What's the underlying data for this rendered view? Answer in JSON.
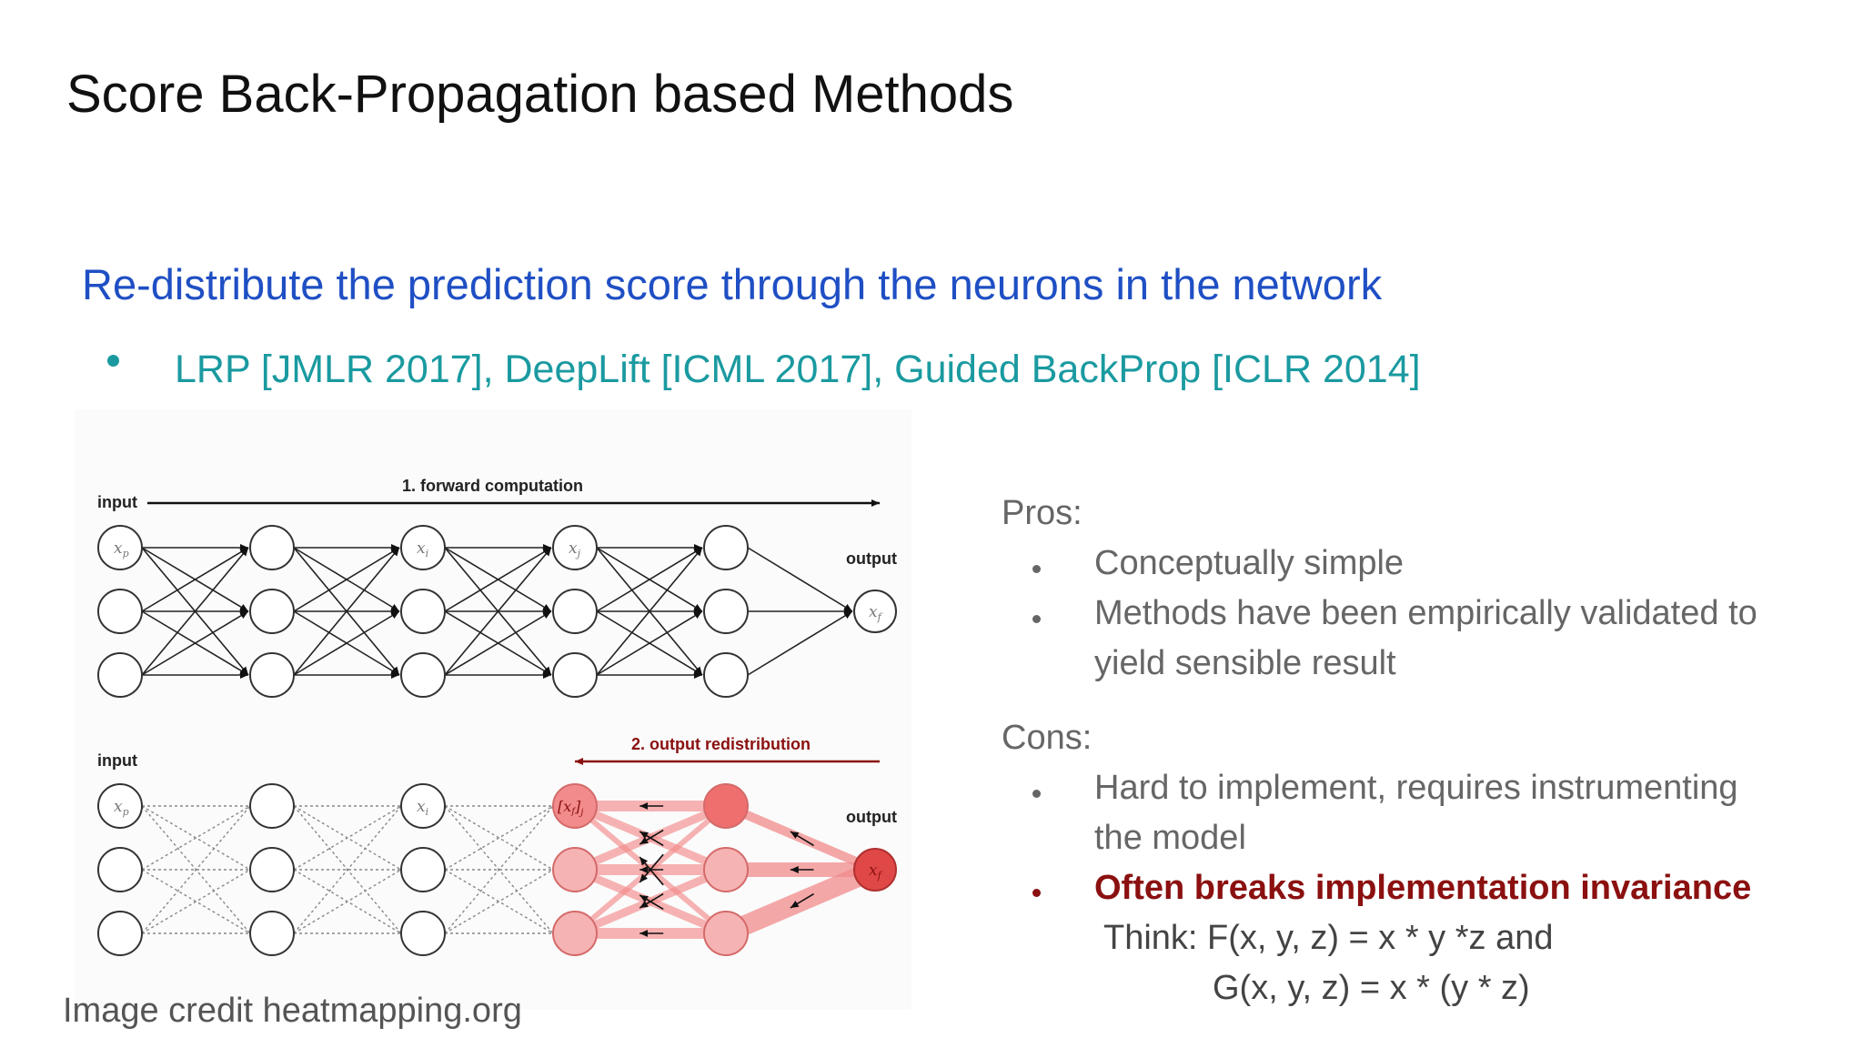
{
  "slide": {
    "title": "Score Back-Propagation based Methods",
    "subtitle": "Re-distribute the prediction score through the neurons in the network",
    "bullet": "LRP [JMLR 2017], DeepLift [ICML 2017], Guided BackProp [ICLR 2014]",
    "image_credit": "Image credit heatmapping.org"
  },
  "figure": {
    "forward": {
      "step_label": "1. forward computation",
      "input_label": "input",
      "output_label": "output"
    },
    "backward": {
      "step_label": "2. output redistribution",
      "input_label": "input",
      "output_label": "output"
    },
    "node_labels": {
      "xp": "xp",
      "xi": "xi",
      "xj": "xj",
      "xf": "xf",
      "xfj": "[xf]j"
    }
  },
  "pros": {
    "heading": "Pros:",
    "items": [
      "Conceptually simple",
      "Methods have been empirically validated to",
      "yield sensible result"
    ]
  },
  "cons": {
    "heading": "Cons:",
    "items": [
      "Hard to implement, requires instrumenting",
      "the model",
      "Often breaks implementation invariance"
    ],
    "think_line1": "Think: F(x, y, z) = x * y *z  and",
    "think_line2": "G(x, y, z) = x * (y * z)"
  },
  "colors": {
    "title": "#111111",
    "subtitle": "#1f4fc4",
    "bullet": "#1a9aa0",
    "emphasis": "#8b1010",
    "relevance_fill": "#f28b8b",
    "relevance_strong": "#e04848"
  }
}
